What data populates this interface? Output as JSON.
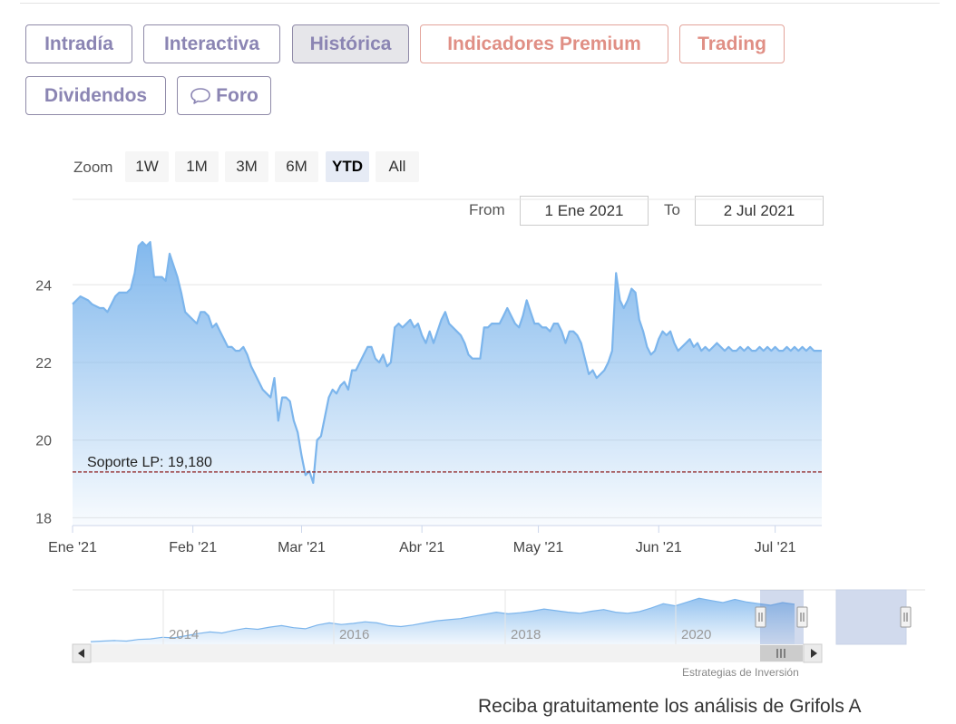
{
  "tabs": [
    {
      "label": "Intradía",
      "style": "normal"
    },
    {
      "label": "Interactiva",
      "style": "normal"
    },
    {
      "label": "Histórica",
      "style": "active"
    },
    {
      "label": "Indicadores Premium",
      "style": "premium"
    },
    {
      "label": "Trading",
      "style": "premium"
    },
    {
      "label": "Dividendos",
      "style": "normal"
    },
    {
      "label": "Foro",
      "style": "normal",
      "icon": "chat-bubble-icon"
    }
  ],
  "zoom": {
    "label": "Zoom",
    "buttons": [
      "1W",
      "1M",
      "3M",
      "6M",
      "YTD",
      "All"
    ],
    "selected": "YTD"
  },
  "range": {
    "from_label": "From",
    "from_value": "1 Ene 2021",
    "to_label": "To",
    "to_value": "2 Jul 2021"
  },
  "colors": {
    "line": "#7cb5ec",
    "support_line": "#8b1a1a",
    "tab_text": "#8b85b3",
    "premium_text": "#e08f85"
  },
  "chart_data": {
    "type": "area",
    "x_tick_labels": [
      "Ene '21",
      "Feb '21",
      "Mar '21",
      "Abr '21",
      "May '21",
      "Jun '21",
      "Jul '21"
    ],
    "x_tick_days": [
      0,
      31,
      59,
      90,
      120,
      151,
      181
    ],
    "y_ticks": [
      18,
      20,
      22,
      24
    ],
    "ylim": [
      17.8,
      26.2
    ],
    "xlim": [
      0,
      193
    ],
    "x": [
      0,
      2,
      4,
      5,
      7,
      8,
      9,
      10,
      11,
      12,
      13,
      14,
      15,
      16,
      17,
      18,
      19,
      20,
      21,
      22,
      23,
      24,
      25,
      26,
      27,
      28,
      29,
      30,
      31,
      32,
      33,
      34,
      35,
      36,
      37,
      38,
      39,
      40,
      41,
      42,
      43,
      44,
      45,
      46,
      47,
      48,
      49,
      50,
      51,
      52,
      53,
      54,
      55,
      56,
      57,
      58,
      59,
      60,
      61,
      62,
      63,
      64,
      65,
      66,
      67,
      68,
      69,
      70,
      71,
      72,
      73,
      74,
      75,
      76,
      77,
      78,
      79,
      80,
      81,
      82,
      83,
      84,
      85,
      86,
      87,
      88,
      89,
      90,
      91,
      92,
      93,
      94,
      95,
      96,
      97,
      98,
      99,
      100,
      101,
      102,
      103,
      104,
      105,
      106,
      107,
      108,
      109,
      110,
      111,
      112,
      113,
      114,
      115,
      116,
      117,
      118,
      119,
      120,
      121,
      122,
      123,
      124,
      125,
      126,
      127,
      128,
      129,
      130,
      131,
      132,
      133,
      134,
      135,
      136,
      137,
      138,
      139,
      140,
      141,
      142,
      143,
      144,
      145,
      146,
      147,
      148,
      149,
      150,
      151,
      152,
      153,
      154,
      155,
      156,
      157,
      158,
      159,
      160,
      161,
      162,
      163,
      164,
      165,
      166,
      167,
      168,
      169,
      170,
      171,
      172,
      173,
      174,
      175,
      176,
      177,
      178,
      179,
      180,
      181,
      182,
      183,
      184,
      185,
      186,
      187,
      188,
      189,
      190,
      191,
      192,
      193
    ],
    "y": [
      23.5,
      23.7,
      23.6,
      23.5,
      23.4,
      23.4,
      23.3,
      23.5,
      23.7,
      23.8,
      23.8,
      23.8,
      23.9,
      24.3,
      25.0,
      25.1,
      25.0,
      25.1,
      24.2,
      24.2,
      24.2,
      24.1,
      24.8,
      24.5,
      24.2,
      23.8,
      23.3,
      23.2,
      23.1,
      23.0,
      23.3,
      23.3,
      23.2,
      22.9,
      23.0,
      22.8,
      22.6,
      22.4,
      22.4,
      22.3,
      22.3,
      22.4,
      22.2,
      21.9,
      21.7,
      21.5,
      21.3,
      21.2,
      21.1,
      21.6,
      20.5,
      21.1,
      21.1,
      21.0,
      20.5,
      20.2,
      19.6,
      19.1,
      19.2,
      18.9,
      20.0,
      20.1,
      20.6,
      21.1,
      21.3,
      21.2,
      21.4,
      21.5,
      21.3,
      21.8,
      21.8,
      22.0,
      22.2,
      22.4,
      22.4,
      22.1,
      22.0,
      22.2,
      21.9,
      22.0,
      22.9,
      23.0,
      22.9,
      23.0,
      23.1,
      22.9,
      23.0,
      22.7,
      22.5,
      22.8,
      22.5,
      22.8,
      23.1,
      23.3,
      23.0,
      22.9,
      22.8,
      22.7,
      22.5,
      22.2,
      22.1,
      22.1,
      22.1,
      22.9,
      22.9,
      23.0,
      23.0,
      23.0,
      23.2,
      23.4,
      23.2,
      23.0,
      22.9,
      23.2,
      23.6,
      23.3,
      23.0,
      23.0,
      22.9,
      22.9,
      22.8,
      23.0,
      23.0,
      22.8,
      22.5,
      22.8,
      22.8,
      22.7,
      22.5,
      22.1,
      21.7,
      21.8,
      21.6,
      21.7,
      21.8,
      22.0,
      22.3,
      24.3,
      23.6,
      23.4,
      23.6,
      23.9,
      23.8,
      23.1,
      22.8,
      22.4,
      22.2,
      22.3,
      22.6,
      22.8,
      22.7,
      22.8,
      22.5,
      22.3,
      22.4,
      22.5,
      22.6,
      22.4,
      22.5,
      22.3,
      22.4,
      22.3,
      22.4,
      22.5,
      22.4,
      22.3,
      22.4,
      22.3,
      22.3,
      22.4,
      22.3,
      22.4,
      22.3,
      22.3,
      22.4,
      22.3,
      22.4,
      22.3,
      22.4,
      22.3,
      22.3,
      22.4,
      22.3,
      22.4,
      22.3,
      22.4,
      22.3,
      22.4,
      22.3,
      22.3,
      22.3
    ],
    "support": {
      "label": "Soporte LP: 19,180",
      "value": 19.18
    },
    "grid": true,
    "navigator": {
      "x_tick_labels": [
        "2014",
        "2016",
        "2018",
        "2020"
      ],
      "series": [
        10.5,
        10.6,
        10.7,
        10.6,
        10.9,
        11.0,
        11.3,
        11.2,
        11.6,
        12.0,
        12.3,
        12.1,
        12.6,
        13.0,
        12.8,
        13.2,
        13.5,
        13.1,
        12.9,
        13.6,
        14.0,
        13.7,
        13.9,
        14.2,
        14.0,
        13.5,
        13.3,
        13.6,
        14.0,
        14.4,
        14.6,
        14.8,
        15.2,
        15.6,
        16.0,
        15.7,
        15.9,
        16.2,
        16.6,
        16.3,
        16.0,
        15.8,
        16.2,
        16.5,
        16.0,
        15.8,
        16.1,
        16.8,
        17.6,
        17.2,
        17.9,
        18.6,
        18.2,
        17.8,
        18.4,
        17.9,
        17.6,
        17.3,
        17.8,
        17.5
      ]
    }
  },
  "credits": "Estrategias de Inversión",
  "footer": "Reciba gratuitamente los análisis de Grifols A"
}
